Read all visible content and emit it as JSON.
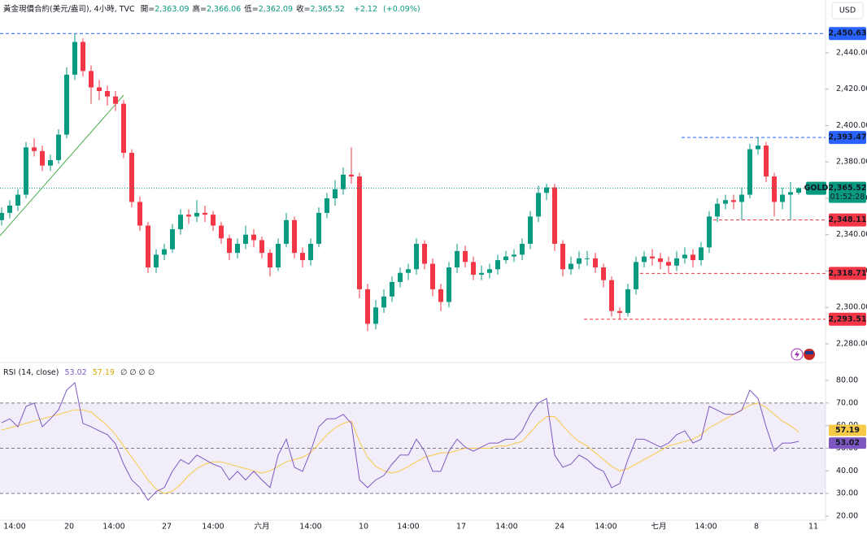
{
  "chart_data": [
    {
      "type": "candlestick",
      "title": "黃金現價合約(美元/盎司), 4小時, TVC",
      "legend_items": [
        {
          "name": "開=",
          "value": 2363.09,
          "label": "2,363.09"
        },
        {
          "name": "高=",
          "value": 2366.06,
          "label": "2,366.06"
        },
        {
          "name": "低=",
          "value": 2362.09,
          "label": "2,362.09"
        },
        {
          "name": "收=",
          "value": 2365.52,
          "label": "2,365.52"
        }
      ],
      "change": {
        "value": 2.12,
        "label": "+2.12"
      },
      "change_pct": {
        "value": 0.09,
        "label": "(+0.09%)"
      },
      "currency": "USD",
      "up_color": "#089981",
      "down_color": "#f23645",
      "open": [
        2348,
        2352,
        2356,
        2362,
        2388,
        2386,
        2378,
        2381,
        2395,
        2428,
        2446,
        2430,
        2421,
        2419,
        2416,
        2412,
        2385,
        2358,
        2345,
        2322,
        2329,
        2332,
        2343,
        2351,
        2350,
        2352,
        2351,
        2345,
        2338,
        2330,
        2335,
        2340,
        2337,
        2330,
        2322,
        2335,
        2348,
        2330,
        2326,
        2335,
        2352,
        2360,
        2365,
        2373,
        2372,
        2310,
        2291,
        2300,
        2306,
        2314,
        2319,
        2321,
        2335,
        2324,
        2310,
        2303,
        2322,
        2331,
        2325,
        2318,
        2319,
        2321,
        2326,
        2328,
        2329,
        2335,
        2350,
        2363,
        2366,
        2335,
        2321,
        2324,
        2327,
        2327,
        2322,
        2315,
        2298,
        2297,
        2310,
        2325,
        2328,
        2327,
        2325,
        2323,
        2327,
        2329,
        2326,
        2333,
        2350,
        2357,
        2359,
        2358,
        2362,
        2387,
        2389,
        2372,
        2358,
        2362,
        2363.09
      ],
      "high": [
        2355,
        2359,
        2365,
        2391,
        2393,
        2389,
        2384,
        2398,
        2432,
        2450.63,
        2448,
        2433,
        2425,
        2422,
        2419,
        2414,
        2387,
        2361,
        2347,
        2332,
        2335,
        2346,
        2354,
        2354,
        2359,
        2356,
        2353,
        2347,
        2340,
        2338,
        2345,
        2343,
        2339,
        2332,
        2338,
        2352,
        2350,
        2333,
        2338,
        2355,
        2363,
        2370,
        2377,
        2388,
        2374,
        2313,
        2304,
        2310,
        2317,
        2322,
        2324,
        2338,
        2337,
        2327,
        2313,
        2325,
        2335,
        2334,
        2328,
        2323,
        2324,
        2329,
        2331,
        2332,
        2338,
        2353,
        2367,
        2368,
        2368,
        2337,
        2328,
        2331,
        2331,
        2330,
        2324,
        2317,
        2300,
        2313,
        2328,
        2331,
        2332,
        2330,
        2328,
        2331,
        2333,
        2332,
        2336,
        2353,
        2360,
        2362,
        2362,
        2366,
        2390,
        2393.47,
        2391,
        2374,
        2366,
        2369,
        2366.06
      ],
      "low": [
        2345,
        2349,
        2353,
        2360,
        2383,
        2375,
        2375,
        2379,
        2393,
        2425,
        2427,
        2412,
        2414,
        2411,
        2408,
        2382,
        2355,
        2342,
        2319,
        2319,
        2326,
        2330,
        2340,
        2346,
        2347,
        2347,
        2342,
        2335,
        2326,
        2327,
        2332,
        2333,
        2327,
        2317,
        2320,
        2333,
        2327,
        2322,
        2323,
        2333,
        2349,
        2356,
        2362,
        2368,
        2305,
        2287,
        2288,
        2297,
        2303,
        2311,
        2315,
        2318,
        2321,
        2306,
        2298,
        2300,
        2319,
        2322,
        2315,
        2315,
        2316,
        2318,
        2324,
        2325,
        2326,
        2332,
        2347,
        2359,
        2331,
        2317,
        2318,
        2321,
        2323,
        2319,
        2311,
        2295,
        2293.51,
        2295,
        2307,
        2322,
        2323,
        2321,
        2319,
        2320,
        2324,
        2322,
        2323,
        2330,
        2347,
        2354,
        2354,
        2348,
        2360,
        2384,
        2369,
        2350,
        2354,
        2348,
        2362.09
      ],
      "close": [
        2352,
        2356,
        2362,
        2388,
        2386,
        2378,
        2381,
        2395,
        2428,
        2446,
        2430,
        2421,
        2419,
        2416,
        2412,
        2385,
        2358,
        2345,
        2322,
        2329,
        2332,
        2343,
        2351,
        2350,
        2352,
        2351,
        2345,
        2338,
        2330,
        2335,
        2340,
        2337,
        2330,
        2322,
        2335,
        2348,
        2330,
        2326,
        2335,
        2352,
        2360,
        2365,
        2373,
        2372,
        2310,
        2291,
        2300,
        2306,
        2314,
        2319,
        2321,
        2335,
        2324,
        2310,
        2303,
        2322,
        2331,
        2325,
        2318,
        2319,
        2321,
        2326,
        2328,
        2329,
        2335,
        2350,
        2363,
        2366,
        2335,
        2321,
        2324,
        2327,
        2327,
        2322,
        2315,
        2298,
        2297,
        2310,
        2325,
        2328,
        2327,
        2325,
        2323,
        2327,
        2329,
        2326,
        2333,
        2350,
        2357,
        2359,
        2358,
        2362,
        2387,
        2389,
        2372,
        2358,
        2362,
        2363.4,
        2365.52
      ],
      "xlim": [
        -0.2,
        101.3
      ],
      "xticks": [
        {
          "value": 1.6,
          "label": "14:00"
        },
        {
          "value": 8.3,
          "label": "20"
        },
        {
          "value": 13.8,
          "label": "14:00"
        },
        {
          "value": 20.3,
          "label": "27"
        },
        {
          "value": 26,
          "label": "14:00"
        },
        {
          "value": 32,
          "label": "六月"
        },
        {
          "value": 38,
          "label": "14:00"
        },
        {
          "value": 44.5,
          "label": "10"
        },
        {
          "value": 50,
          "label": "14:00"
        },
        {
          "value": 56.5,
          "label": "17"
        },
        {
          "value": 62.1,
          "label": "14:00"
        },
        {
          "value": 68.6,
          "label": "24"
        },
        {
          "value": 74.3,
          "label": "14:00"
        },
        {
          "value": 80.8,
          "label": "七月"
        },
        {
          "value": 86.6,
          "label": "14:00"
        },
        {
          "value": 92.8,
          "label": "8"
        },
        {
          "value": 99.8,
          "label": "11"
        }
      ],
      "ylim": [
        2270.16,
        2469.05
      ],
      "yticks": [
        {
          "value": 2440,
          "label": "2,440.00"
        },
        {
          "value": 2420,
          "label": "2,420.00"
        },
        {
          "value": 2400,
          "label": "2,400.00"
        },
        {
          "value": 2380,
          "label": "2,380.00"
        },
        {
          "value": 2360,
          "label": "2,360.00"
        },
        {
          "value": 2340,
          "label": "2,340.00"
        },
        {
          "value": 2320,
          "label": "2,320.00"
        },
        {
          "value": 2300,
          "label": "2,300.00"
        },
        {
          "value": 2280,
          "label": "2,280.00"
        }
      ],
      "price_lines": [
        {
          "value": 2450.63,
          "label": "2,450.63",
          "color": "#2962ff"
        },
        {
          "value": 2393.47,
          "label": "2,393.47",
          "color": "#2962ff"
        },
        {
          "value": 2348.11,
          "label": "2,348.11",
          "color": "#f23645"
        },
        {
          "value": 2318.71,
          "label": "2,318.71",
          "color": "#f23645"
        },
        {
          "value": 2293.51,
          "label": "2,293.51",
          "color": "#f23645"
        }
      ],
      "last": {
        "symbol": "GOLD",
        "value": 2365.52,
        "label": "2,365.52",
        "countdown": "01:52:28",
        "color": "#089981"
      }
    },
    {
      "type": "line",
      "title": "RSI (14, close)",
      "extra": "∅ ∅ ∅ ∅",
      "series": [
        {
          "color": "#7e57c2",
          "values": [
            61.3,
            63,
            59.5,
            68.5,
            70,
            59.5,
            63,
            67,
            75.7,
            79,
            61,
            59.5,
            57.7,
            56,
            52,
            43,
            36,
            32.6,
            27,
            30.8,
            32.6,
            39.8,
            45,
            43,
            47,
            45,
            43,
            41.6,
            36,
            39.8,
            36,
            39.8,
            36,
            32.6,
            47,
            54,
            41.6,
            39.8,
            48.7,
            59.5,
            63,
            63,
            65,
            61,
            36,
            32.6,
            36,
            38,
            43,
            47,
            47,
            54,
            48.7,
            39.8,
            39.8,
            48.7,
            54,
            50.5,
            48.7,
            50.5,
            52.3,
            52.3,
            54,
            54,
            57.7,
            65,
            70,
            72,
            47,
            41.6,
            43,
            47,
            45,
            41.6,
            39.8,
            32.6,
            34.4,
            45,
            54,
            54,
            52.3,
            50.5,
            52.3,
            56,
            57.7,
            52.3,
            54,
            68.5,
            66.8,
            65,
            65,
            66.8,
            75.7,
            72,
            59.5,
            48.7,
            52.3,
            52.3,
            53.02
          ]
        },
        {
          "color": "#f7c948",
          "values": [
            58,
            59,
            60,
            61,
            62,
            63,
            64,
            65,
            66,
            67,
            67,
            66,
            63,
            60,
            56,
            51,
            46,
            41,
            36,
            32,
            30,
            31,
            34,
            38,
            41,
            43,
            44,
            44,
            43,
            42,
            41,
            40,
            39,
            40,
            42,
            44,
            45,
            46,
            48,
            52,
            56,
            59,
            61,
            62,
            53,
            46,
            42,
            40,
            39,
            40,
            42,
            44,
            46,
            47,
            48,
            48,
            49,
            50,
            50,
            50,
            50,
            51,
            51,
            52,
            53,
            57,
            61,
            64,
            64,
            60,
            56,
            53,
            51,
            48,
            45,
            42,
            40,
            41,
            43,
            45,
            47,
            49,
            51,
            52,
            53,
            54,
            56,
            59,
            61,
            63,
            65,
            67,
            69,
            70,
            68,
            65,
            62,
            60,
            57.19
          ]
        }
      ],
      "ylim": [
        18.2,
        87.55
      ],
      "yticks": [
        {
          "value": 80,
          "label": "80.00"
        },
        {
          "value": 70,
          "label": "70.00"
        },
        {
          "value": 60,
          "label": "60.00"
        },
        {
          "value": 50,
          "label": "50.00"
        },
        {
          "value": 40,
          "label": "40.00"
        },
        {
          "value": 30,
          "label": "30.00"
        },
        {
          "value": 20,
          "label": "20.00"
        }
      ],
      "levels": [
        70,
        50,
        30
      ],
      "band": [
        70,
        30
      ],
      "band_color": "#7e57c2"
    }
  ]
}
